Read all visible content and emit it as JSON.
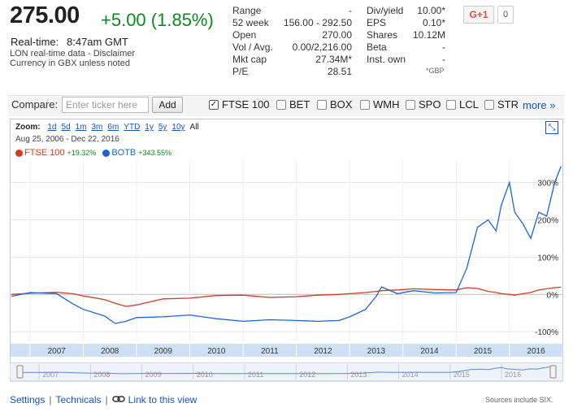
{
  "quote": {
    "price": "275.00",
    "change": "+5.00 (1.85%)",
    "realtime_label": "Real-time:",
    "realtime_value": "8:47am GMT",
    "disclaimer": "LON real-time data - Disclaimer",
    "currency_note": "Currency in GBX unless noted"
  },
  "stats_left": [
    {
      "label": "Range",
      "value": "-"
    },
    {
      "label": "52 week",
      "value": "156.00 - 292.50"
    },
    {
      "label": "Open",
      "value": "270.00"
    },
    {
      "label": "Vol / Avg.",
      "value": "0.00/2,216.00"
    },
    {
      "label": "Mkt cap",
      "value": "27.34M*"
    },
    {
      "label": "P/E",
      "value": "28.51"
    }
  ],
  "stats_right": [
    {
      "label": "Div/yield",
      "value": "10.00*"
    },
    {
      "label": "EPS",
      "value": "0.10*"
    },
    {
      "label": "Shares",
      "value": "10.12M"
    },
    {
      "label": "Beta",
      "value": "-"
    },
    {
      "label": "Inst. own",
      "value": "-"
    }
  ],
  "stats_note": "*GBP",
  "social": {
    "gplus_label": "G+1",
    "gplus_count": "0"
  },
  "compare": {
    "label": "Compare:",
    "placeholder": "Enter ticker here",
    "add_label": "Add",
    "items": [
      {
        "label": "FTSE 100",
        "checked": true
      },
      {
        "label": "BET",
        "checked": false
      },
      {
        "label": "BOX",
        "checked": false
      },
      {
        "label": "WMH",
        "checked": false
      },
      {
        "label": "SPO",
        "checked": false
      },
      {
        "label": "LCL",
        "checked": false
      },
      {
        "label": "STR",
        "checked": false
      }
    ],
    "more_label": "more »"
  },
  "zoom": {
    "label": "Zoom:",
    "options": [
      "1d",
      "5d",
      "1m",
      "3m",
      "6m",
      "YTD",
      "1y",
      "5y",
      "10y",
      "All"
    ],
    "active": "All"
  },
  "date_range": "Aug 25, 2006  -  Dec 22, 2016",
  "legend": [
    {
      "name": "FTSE 100",
      "change": "+19.32%",
      "color": "#d6391f"
    },
    {
      "name": "BOTB",
      "change": "+343.55%",
      "color": "#1a66d1"
    }
  ],
  "footer": {
    "settings": "Settings",
    "technicals": "Technicals",
    "link_label": "Link to this view",
    "sources": "Sources include SIX."
  },
  "chart_data": {
    "type": "line",
    "x": [
      2006.65,
      2007.0,
      2007.5,
      2007.8,
      2008.0,
      2008.4,
      2008.6,
      2008.8,
      2009.0,
      2009.5,
      2010.0,
      2010.5,
      2011.0,
      2011.5,
      2012.0,
      2012.4,
      2012.8,
      2013.0,
      2013.3,
      2013.5,
      2013.6,
      2013.9,
      2014.2,
      2014.6,
      2015.0,
      2015.2,
      2015.4,
      2015.6,
      2015.75,
      2015.85,
      2016.0,
      2016.1,
      2016.25,
      2016.4,
      2016.55,
      2016.7,
      2016.85,
      2016.97
    ],
    "series": [
      {
        "name": "FTSE 100",
        "color": "#d6391f",
        "values": [
          0,
          3,
          6,
          2,
          -4,
          -14,
          -24,
          -32,
          -28,
          -12,
          -10,
          -3,
          -2,
          -8,
          -6,
          -2,
          0,
          2,
          5,
          8,
          10,
          12,
          15,
          13,
          12,
          18,
          16,
          8,
          5,
          2,
          0,
          -2,
          2,
          5,
          12,
          15,
          18,
          19.32
        ]
      },
      {
        "name": "BOTB",
        "color": "#1a66d1",
        "values": [
          -5,
          5,
          2,
          -25,
          -40,
          -58,
          -78,
          -72,
          -62,
          -60,
          -55,
          -65,
          -72,
          -68,
          -70,
          -72,
          -70,
          -60,
          -40,
          -5,
          20,
          2,
          10,
          4,
          5,
          70,
          180,
          200,
          170,
          240,
          300,
          220,
          190,
          150,
          220,
          210,
          300,
          343.55
        ]
      }
    ],
    "y_ticks": [
      "300%",
      "200%",
      "100%",
      "0%",
      "-100%"
    ],
    "x_ticks": [
      "2007",
      "2008",
      "2009",
      "2010",
      "2011",
      "2012",
      "2013",
      "2014",
      "2015",
      "2016"
    ],
    "xlim": [
      2006.65,
      2016.98
    ],
    "ylim": [
      -130,
      360
    ],
    "grid": true
  }
}
